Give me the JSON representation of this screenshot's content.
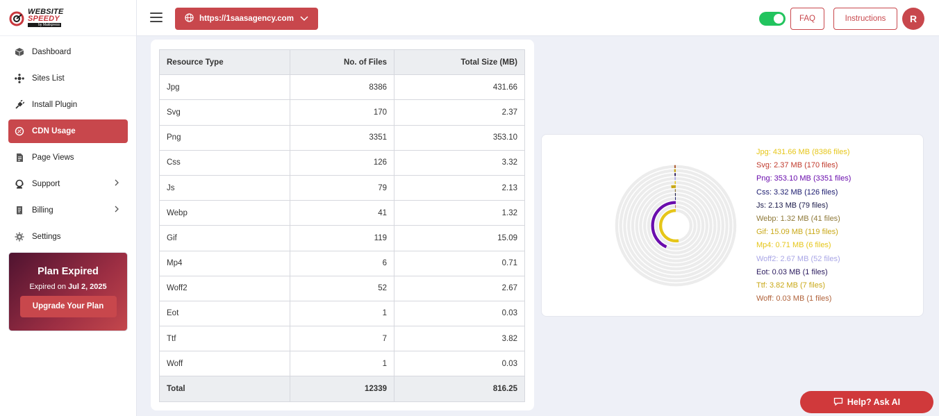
{
  "logo": {
    "line1": "WEBSITE",
    "line2": "SPEEDY",
    "line3": "by Makkpress"
  },
  "sidebar": {
    "items": [
      {
        "label": "Dashboard",
        "icon": "cube-icon"
      },
      {
        "label": "Sites List",
        "icon": "sitemap-icon"
      },
      {
        "label": "Install Plugin",
        "icon": "plug-icon"
      },
      {
        "label": "CDN Usage",
        "icon": "cdn-icon",
        "active": true
      },
      {
        "label": "Page Views",
        "icon": "document-icon"
      },
      {
        "label": "Support",
        "icon": "support-icon",
        "has_submenu": true
      },
      {
        "label": "Billing",
        "icon": "billing-icon",
        "has_submenu": true
      },
      {
        "label": "Settings",
        "icon": "gear-icon"
      }
    ]
  },
  "plan": {
    "title": "Plan Expired",
    "expired_prefix": "Expired on",
    "expired_date": "Jul 2, 2025",
    "upgrade_label": "Upgrade Your Plan"
  },
  "header": {
    "site_url": "https://1saasagency.com",
    "toggle_on": true,
    "faq_label": "FAQ",
    "instructions_label": "Instructions",
    "avatar_initial": "R"
  },
  "table": {
    "headers": [
      "Resource Type",
      "No. of Files",
      "Total Size (MB)"
    ],
    "rows": [
      [
        "Jpg",
        "8386",
        "431.66"
      ],
      [
        "Svg",
        "170",
        "2.37"
      ],
      [
        "Png",
        "3351",
        "353.10"
      ],
      [
        "Css",
        "126",
        "3.32"
      ],
      [
        "Js",
        "79",
        "2.13"
      ],
      [
        "Webp",
        "41",
        "1.32"
      ],
      [
        "Gif",
        "119",
        "15.09"
      ],
      [
        "Mp4",
        "6",
        "0.71"
      ],
      [
        "Woff2",
        "52",
        "2.67"
      ],
      [
        "Eot",
        "1",
        "0.03"
      ],
      [
        "Ttf",
        "7",
        "3.82"
      ],
      [
        "Woff",
        "1",
        "0.03"
      ]
    ],
    "total": [
      "Total",
      "12339",
      "816.25"
    ]
  },
  "chart_data": {
    "type": "radial-bar",
    "max": 816.25,
    "series": [
      {
        "name": "Jpg",
        "value": 431.66,
        "files": 8386,
        "label": "Jpg: 431.66 MB (8386 files)",
        "color": "#e6c619"
      },
      {
        "name": "Svg",
        "value": 2.37,
        "files": 170,
        "label": "Svg: 2.37 MB (170 files)",
        "color": "#c0392b"
      },
      {
        "name": "Png",
        "value": 353.1,
        "files": 3351,
        "label": "Png: 353.10 MB (3351 files)",
        "color": "#6a0dad"
      },
      {
        "name": "Css",
        "value": 3.32,
        "files": 126,
        "label": "Css: 3.32 MB (126 files)",
        "color": "#1a1a6e"
      },
      {
        "name": "Js",
        "value": 2.13,
        "files": 79,
        "label": "Js: 2.13 MB (79 files)",
        "color": "#1a1a4a"
      },
      {
        "name": "Webp",
        "value": 1.32,
        "files": 41,
        "label": "Webp: 1.32 MB (41 files)",
        "color": "#8f7a3a"
      },
      {
        "name": "Gif",
        "value": 15.09,
        "files": 119,
        "label": "Gif: 15.09 MB (119 files)",
        "color": "#c9a817"
      },
      {
        "name": "Mp4",
        "value": 0.71,
        "files": 6,
        "label": "Mp4: 0.71 MB (6 files)",
        "color": "#e6c619"
      },
      {
        "name": "Woff2",
        "value": 2.67,
        "files": 52,
        "label": "Woff2: 2.67 MB (52 files)",
        "color": "#a9a6e6"
      },
      {
        "name": "Eot",
        "value": 0.03,
        "files": 1,
        "label": "Eot: 0.03 MB (1 files)",
        "color": "#2a1a5e"
      },
      {
        "name": "Ttf",
        "value": 3.82,
        "files": 7,
        "label": "Ttf: 3.82 MB (7 files)",
        "color": "#c9a817"
      },
      {
        "name": "Woff",
        "value": 0.03,
        "files": 1,
        "label": "Woff: 0.03 MB (1 files)",
        "color": "#b0623a"
      }
    ]
  },
  "help": {
    "label": "Help? Ask AI"
  }
}
